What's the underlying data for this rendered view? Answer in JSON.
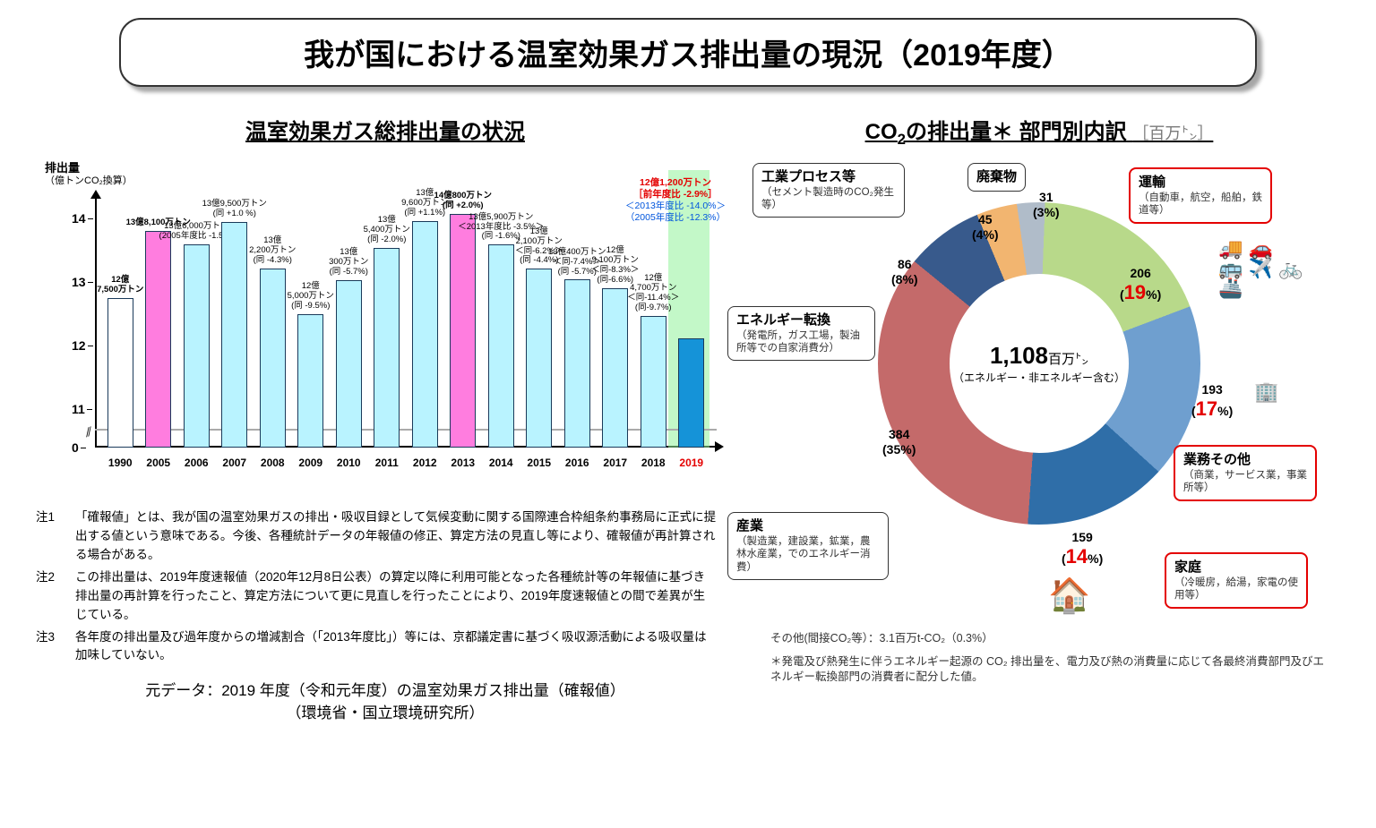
{
  "title": "我が国における温室効果ガス排出量の現況（2019年度）",
  "left": {
    "title": "温室効果ガス総排出量の状況",
    "ylabel": "排出量",
    "ylabel_sub": "（億トンCO₂換算）",
    "ylim": [
      10.4,
      14.2
    ],
    "yticks": [
      0,
      11,
      12,
      13,
      14
    ],
    "highlight": {
      "year": "2019",
      "color": "#92f29a"
    },
    "hline_at": 10.7,
    "top_annot_2019": {
      "l1": "12億1,200万トン",
      "l2": "［前年度比 -2.9%］",
      "l3": "＜2013年度比 -14.0%＞",
      "l4": "（2005年度比 -12.3%）"
    },
    "bars": [
      {
        "year": "1990",
        "value": 12.75,
        "fill": "#ffffff",
        "top1": "12億",
        "top2": "7,500万トン",
        "bold": true
      },
      {
        "year": "2005",
        "value": 13.81,
        "fill": "#ff7ddf",
        "top1": "13億8,100万トン",
        "bold": true
      },
      {
        "year": "2006",
        "value": 13.6,
        "fill": "#b9f3ff",
        "top1": "13億6,000万トン",
        "top2": "(2005年度比 -1.5%)"
      },
      {
        "year": "2007",
        "value": 13.95,
        "fill": "#b9f3ff",
        "top1": "13億9,500万トン",
        "top2": "(同 +1.0 %)"
      },
      {
        "year": "2008",
        "value": 13.22,
        "fill": "#b9f3ff",
        "top1": "13億",
        "top2": "2,200万トン",
        "top3": "(同 -4.3%)"
      },
      {
        "year": "2009",
        "value": 12.5,
        "fill": "#b9f3ff",
        "top1": "12億",
        "top2": "5,000万トン",
        "top3": "(同 -9.5%)"
      },
      {
        "year": "2010",
        "value": 13.03,
        "fill": "#b9f3ff",
        "top1": "13億",
        "top2": "300万トン",
        "top3": "(同 -5.7%)"
      },
      {
        "year": "2011",
        "value": 13.54,
        "fill": "#b9f3ff",
        "top1": "13億",
        "top2": "5,400万トン",
        "top3": "(同 -2.0%)"
      },
      {
        "year": "2012",
        "value": 13.96,
        "fill": "#b9f3ff",
        "top1": "13億",
        "top2": "9,600万トン",
        "top3": "(同 +1.1%)"
      },
      {
        "year": "2013",
        "value": 14.08,
        "fill": "#ff7ddf",
        "top1": "14億800万トン",
        "top2": "(同 +2.0%)",
        "bold": true
      },
      {
        "year": "2014",
        "value": 13.59,
        "fill": "#b9f3ff",
        "top1": "13億5,900万トン",
        "top2": "＜2013年度比 -3.5%＞",
        "top3": "(同 -1.6%)"
      },
      {
        "year": "2015",
        "value": 13.21,
        "fill": "#b9f3ff",
        "top1": "13億",
        "top2": "2,100万トン",
        "top3": "＜同-6.2%＞",
        "top4": "(同 -4.4%)"
      },
      {
        "year": "2016",
        "value": 13.04,
        "fill": "#b9f3ff",
        "top1": "13億400万トン",
        "top2": "＜同-7.4%＞",
        "top3": "(同 -5.7%)"
      },
      {
        "year": "2017",
        "value": 12.91,
        "fill": "#b9f3ff",
        "top1": "12億",
        "top2": "9,100万トン",
        "top3": "＜同-8.3%＞",
        "top4": "(同-6.6%)"
      },
      {
        "year": "2018",
        "value": 12.47,
        "fill": "#b9f3ff",
        "top1": "12億",
        "top2": "4,700万トン",
        "top3": "＜同-11.4%＞",
        "top4": "(同-9.7%)"
      },
      {
        "year": "2019",
        "value": 12.12,
        "fill": "#1593d8",
        "labelcolor": "#e40000"
      }
    ],
    "notes": [
      {
        "n": "注1",
        "t": "「確報値」とは、我が国の温室効果ガスの排出・吸収目録として気候変動に関する国際連合枠組条約事務局に正式に提出する値という意味である。今後、各種統計データの年報値の修正、算定方法の見直し等により、確報値が再計算される場合がある。"
      },
      {
        "n": "注2",
        "t": "この排出量は、2019年度速報値（2020年12月8日公表）の算定以降に利用可能となった各種統計等の年報値に基づき排出量の再計算を行ったこと、算定方法について更に見直しを行ったことにより、2019年度速報値との間で差異が生じている。"
      },
      {
        "n": "注3",
        "t": "各年度の排出量及び過年度からの増減割合（「2013年度比」）等には、京都議定書に基づく吸収源活動による吸収量は加味していない。"
      }
    ],
    "source_l1": "元データ：2019 年度（令和元年度）の温室効果ガス排出量（確報値）",
    "source_l2": "（環境省・国立環境研究所）"
  },
  "right": {
    "title_html": "CO₂の排出量＊ 部門別内訳",
    "unit": "［百万㌧］",
    "center_big": "1,108",
    "center_unit": "百万㌧",
    "center_sub": "（エネルギー・非エネルギー含む）",
    "segments": [
      {
        "name": "運輸",
        "sub": "（自動車，航空，船舶，鉄道等）",
        "value": 206,
        "pct": 19,
        "color": "#b8d98a",
        "red": true
      },
      {
        "name": "業務その他",
        "sub": "（商業，サービス業，事業所等）",
        "value": 193,
        "pct": 17,
        "color": "#6f9fcf",
        "red": true
      },
      {
        "name": "家庭",
        "sub": "（冷暖房，給湯，家電の使用等）",
        "value": 159,
        "pct": 14,
        "color": "#2f6ea8",
        "red": true
      },
      {
        "name": "産業",
        "sub": "（製造業，建設業，鉱業，農林水産業，でのエネルギー消費）",
        "value": 384,
        "pct": 35,
        "color": "#c46a6a",
        "red": false
      },
      {
        "name": "エネルギー転換",
        "sub": "（発電所，ガス工場，製油所等での自家消費分）",
        "value": 86,
        "pct": 8,
        "color": "#385a8c",
        "red": false
      },
      {
        "name": "工業プロセス等",
        "sub": "（セメント製造時のCO₂発生等）",
        "value": 45,
        "pct": 4,
        "color": "#f2b570",
        "red": false
      },
      {
        "name": "廃棄物",
        "sub": "",
        "value": 31,
        "pct": 3,
        "color": "#b0bcc9",
        "red": false
      }
    ],
    "foot_other": "その他(間接CO₂等）：3.1百万t-CO₂（0.3%）",
    "foot_ast": "＊発電及び熱発生に伴うエネルギー起源の CO₂ 排出量を、電力及び熱の消費量に応じて各最終消費部門及びエネルギー転換部門の消費者に配分した値。"
  }
}
